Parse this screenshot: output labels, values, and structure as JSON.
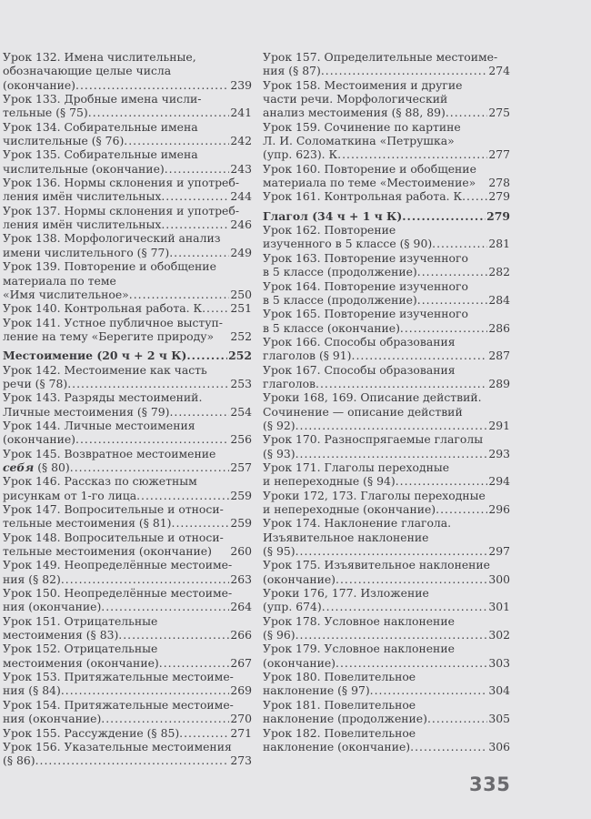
{
  "page_number": "335",
  "left": {
    "entries": [
      {
        "lines": [
          "Урок 132. Имена числительные,",
          "обозначающие целые числа",
          "(окончание)"
        ],
        "page": "239"
      },
      {
        "lines": [
          "Урок 133. Дробные имена числи-",
          "тельные (§ 75)"
        ],
        "page": "241"
      },
      {
        "lines": [
          "Урок 134. Собирательные имена",
          "числительные (§ 76)"
        ],
        "page": "242"
      },
      {
        "lines": [
          "Урок 135. Собирательные имена",
          "числительные (окончание)"
        ],
        "page": "243"
      },
      {
        "lines": [
          "Урок 136. Нормы склонения и употреб-",
          "ления имён числительных"
        ],
        "page": "244"
      },
      {
        "lines": [
          "Урок 137. Нормы склонения и употреб-",
          "ления имён числительных"
        ],
        "page": "246"
      },
      {
        "lines": [
          "Урок 138. Морфологический анализ",
          "имени числительного (§ 77)"
        ],
        "page": "249"
      },
      {
        "lines": [
          "Урок 139. Повторение и обобщение",
          "материала по теме",
          "«Имя числительное»"
        ],
        "page": "250"
      },
      {
        "lines": [
          "Урок 140. Контрольная работа. К"
        ],
        "page": "251"
      },
      {
        "lines": [
          "Урок 141. Устное публичное выступ-",
          "ление на тему «Берегите природу»"
        ],
        "page": "252",
        "dots": false
      },
      {
        "heading": true,
        "lines": [
          "Местоимение (20 ч + 2 ч К)"
        ],
        "page": "252"
      },
      {
        "lines": [
          "Урок 142. Местоимение как часть",
          "речи (§ 78)"
        ],
        "page": "253"
      },
      {
        "lines": [
          "Урок 143. Разряды местоимений.",
          "Личные местоимения (§ 79)"
        ],
        "page": "254"
      },
      {
        "lines": [
          "Урок 144. Личные местоимения",
          "(окончание)"
        ],
        "page": "256"
      },
      {
        "lines": [
          "Урок 145. Возвратное местоимение",
          [
            {
              "t": "себя",
              "em": true
            },
            {
              "t": " (§ 80)"
            }
          ]
        ],
        "page": "257"
      },
      {
        "lines": [
          "Урок 146. Рассказ по сюжетным",
          "рисункам от 1-го лица"
        ],
        "page": "259"
      },
      {
        "lines": [
          "Урок 147. Вопросительные и относи-",
          "тельные местоимения (§ 81)"
        ],
        "page": "259"
      },
      {
        "lines": [
          "Урок 148. Вопросительные и относи-",
          "тельные местоимения (окончание)"
        ],
        "page": "260",
        "dots": false
      },
      {
        "lines": [
          "Урок 149. Неопределённые местоиме-",
          "ния (§ 82)"
        ],
        "page": "263"
      },
      {
        "lines": [
          "Урок 150. Неопределённые местоиме-",
          "ния (окончание)"
        ],
        "page": "264"
      },
      {
        "lines": [
          "Урок 151. Отрицательные",
          "местоимения (§ 83)"
        ],
        "page": "266"
      },
      {
        "lines": [
          "Урок 152. Отрицательные",
          "местоимения (окончание)"
        ],
        "page": "267"
      },
      {
        "lines": [
          "Урок 153. Притяжательные местоиме-",
          "ния (§ 84)"
        ],
        "page": "269"
      },
      {
        "lines": [
          "Урок 154. Притяжательные местоиме-",
          "ния (окончание)"
        ],
        "page": "270"
      },
      {
        "lines": [
          "Урок 155. Рассуждение (§ 85)"
        ],
        "page": "271"
      },
      {
        "lines": [
          "Урок 156. Указательные местоимения",
          "(§ 86)"
        ],
        "page": "273"
      }
    ]
  },
  "right": {
    "entries": [
      {
        "lines": [
          "Урок 157. Определительные местоиме-",
          "ния (§ 87)"
        ],
        "page": "274"
      },
      {
        "lines": [
          "Урок 158. Местоимения и другие",
          "части речи. Морфологический",
          "анализ местоимения (§ 88, 89)"
        ],
        "page": "275"
      },
      {
        "lines": [
          "Урок 159. Сочинение по картине",
          "Л. И. Соломаткина «Петрушка»",
          "(упр. 623). К"
        ],
        "page": "277"
      },
      {
        "lines": [
          "Урок 160. Повторение и обобщение",
          "материала по теме «Местоимение»"
        ],
        "page": "278",
        "dots": false
      },
      {
        "lines": [
          "Урок 161. Контрольная работа. К"
        ],
        "page": "279"
      },
      {
        "heading": true,
        "lines": [
          "Глагол (34 ч + 1 ч К)"
        ],
        "page": "279"
      },
      {
        "lines": [
          "Урок 162. Повторение",
          "изученного в 5 классе (§ 90)"
        ],
        "page": "281"
      },
      {
        "lines": [
          "Урок 163. Повторение изученного",
          "в 5 классе (продолжение)"
        ],
        "page": "282"
      },
      {
        "lines": [
          "Урок 164. Повторение изученного",
          "в 5 классе (продолжение)"
        ],
        "page": "284"
      },
      {
        "lines": [
          "Урок 165. Повторение изученного",
          "в 5 классе (окончание)"
        ],
        "page": "286"
      },
      {
        "lines": [
          "Урок 166. Способы образования",
          "глаголов (§ 91)"
        ],
        "page": "287"
      },
      {
        "lines": [
          "Урок 167. Способы образования",
          "глаголов"
        ],
        "page": "289"
      },
      {
        "lines": [
          "Уроки 168, 169. Описание действий.",
          "Сочинение — описание действий",
          "(§ 92)"
        ],
        "page": "291"
      },
      {
        "lines": [
          "Урок 170. Разноспрягаемые глаголы",
          "(§ 93)"
        ],
        "page": "293"
      },
      {
        "lines": [
          "Урок 171. Глаголы переходные",
          "и непереходные (§ 94)"
        ],
        "page": "294"
      },
      {
        "lines": [
          "Уроки 172, 173. Глаголы переходные",
          "и непереходные (окончание)"
        ],
        "page": "296"
      },
      {
        "lines": [
          "Урок 174. Наклонение глагола.",
          "Изъявительное наклонение",
          "(§ 95)"
        ],
        "page": "297"
      },
      {
        "lines": [
          "Урок 175. Изъявительное наклонение",
          "(окончание)"
        ],
        "page": "300"
      },
      {
        "lines": [
          "Уроки 176, 177. Изложение",
          "(упр. 674)"
        ],
        "page": "301"
      },
      {
        "lines": [
          "Урок 178. Условное наклонение",
          "(§ 96)"
        ],
        "page": "302"
      },
      {
        "lines": [
          "Урок 179. Условное наклонение",
          "(окончание)"
        ],
        "page": "303"
      },
      {
        "lines": [
          "Урок 180. Повелительное",
          "наклонение (§ 97)"
        ],
        "page": "304"
      },
      {
        "lines": [
          "Урок 181. Повелительное",
          "наклонение (продолжение)"
        ],
        "page": "305"
      },
      {
        "lines": [
          "Урок 182. Повелительное",
          "наклонение (окончание)"
        ],
        "page": "306"
      }
    ]
  }
}
